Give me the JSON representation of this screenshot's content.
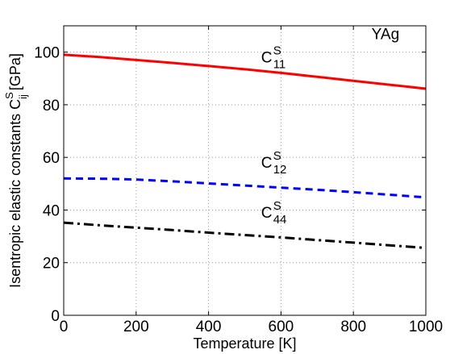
{
  "chart_data": {
    "type": "line",
    "xlabel": "Temperature [K]",
    "ylabel": {
      "main": "Isentropic elastic constants C",
      "sup": "S",
      "sub": "ij",
      "unit": " [GPa]"
    },
    "xlim": [
      0,
      1000
    ],
    "ylim": [
      0,
      110
    ],
    "xticks": [
      0,
      200,
      400,
      600,
      800,
      1000
    ],
    "yticks": [
      0,
      20,
      40,
      60,
      80,
      100
    ],
    "grid": true,
    "annotations": [
      {
        "text": "YAg",
        "x": 850,
        "y": 105
      },
      {
        "base": "C",
        "sup": "S",
        "sub": "11",
        "x": 545,
        "y": 96
      },
      {
        "base": "C",
        "sup": "S",
        "sub": "12",
        "x": 545,
        "y": 56
      },
      {
        "base": "C",
        "sup": "S",
        "sub": "44",
        "x": 545,
        "y": 37
      }
    ],
    "series": [
      {
        "key": "C11",
        "color": "#ff0000",
        "dash": "solid",
        "x": [
          0,
          100,
          200,
          300,
          400,
          500,
          600,
          700,
          800,
          900,
          1000
        ],
        "values": [
          99.0,
          98.1,
          97.0,
          95.9,
          94.7,
          93.5,
          92.1,
          90.6,
          89.1,
          87.6,
          86.1
        ]
      },
      {
        "key": "C12",
        "color": "#0000ff",
        "dash": "dashed",
        "x": [
          0,
          100,
          200,
          300,
          400,
          500,
          600,
          700,
          800,
          900,
          1000
        ],
        "values": [
          52.0,
          51.9,
          51.6,
          50.9,
          50.1,
          49.3,
          48.5,
          47.7,
          46.8,
          45.8,
          44.8
        ]
      },
      {
        "key": "C44",
        "color": "#000000",
        "dash": "dashdot",
        "x": [
          0,
          100,
          200,
          300,
          400,
          500,
          600,
          700,
          800,
          900,
          1000
        ],
        "values": [
          35.2,
          34.2,
          33.3,
          32.4,
          31.4,
          30.5,
          29.6,
          28.6,
          27.6,
          26.6,
          25.6
        ]
      }
    ]
  }
}
